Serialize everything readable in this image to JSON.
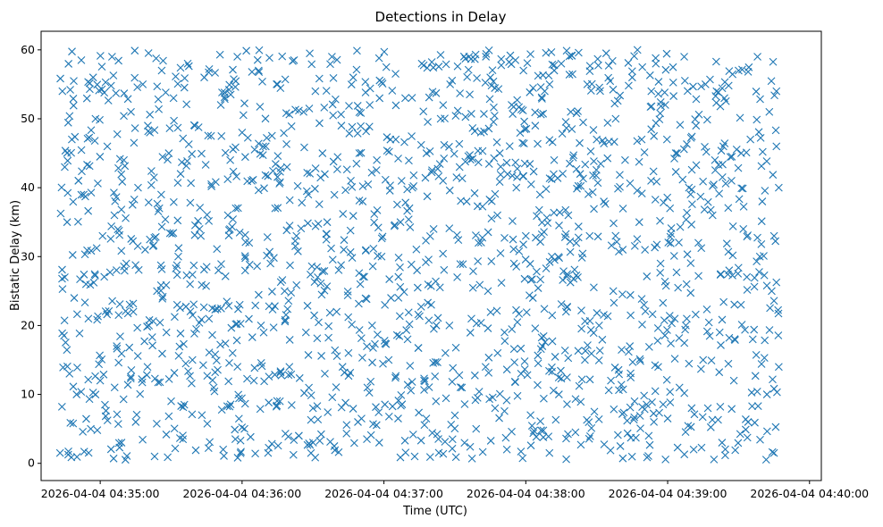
{
  "chart_data": {
    "type": "scatter",
    "title": "Detections in Delay",
    "xlabel": "Time (UTC)",
    "ylabel": "Bistatic Delay (km)",
    "x_tick_labels": [
      "2026-04-04 04:35:00",
      "2026-04-04 04:36:00",
      "2026-04-04 04:37:00",
      "2026-04-04 04:38:00",
      "2026-04-04 04:39:00",
      "2026-04-04 04:40:00"
    ],
    "y_tick_labels": [
      "0",
      "10",
      "20",
      "30",
      "40",
      "50",
      "60"
    ],
    "x_range": [
      "2026-04-04 04:34:35",
      "2026-04-04 04:40:05"
    ],
    "y_range": [
      -2.5,
      62.7
    ],
    "grid": false,
    "marker": "x",
    "color": "#1f77b4",
    "series": [
      {
        "x_start": "2026-04-04 04:34:43",
        "x_end": "2026-04-04 04:39:47",
        "y_min": 0.5,
        "y_max": 60,
        "points": [
          [
            "04:34:43",
            1.5
          ],
          [
            "04:34:44",
            54
          ],
          [
            "04:34:45",
            43
          ],
          [
            "04:34:46",
            35
          ],
          [
            "04:34:45",
            27
          ],
          [
            "04:34:47",
            13
          ],
          [
            "04:34:48",
            47
          ],
          [
            "04:34:49",
            24
          ],
          [
            "04:34:50",
            10
          ],
          [
            "04:34:52",
            58.5
          ],
          [
            "04:34:53",
            39
          ],
          [
            "04:34:54",
            26
          ],
          [
            "04:34:55",
            21
          ],
          [
            "04:34:56",
            5
          ],
          [
            "04:34:57",
            56
          ],
          [
            "04:34:58",
            50
          ],
          [
            "04:35:00",
            12
          ],
          [
            "04:35:01",
            33
          ],
          [
            "04:35:02",
            8.5
          ],
          [
            "04:35:03",
            46
          ],
          [
            "04:35:05",
            59
          ],
          [
            "04:35:06",
            36
          ],
          [
            "04:35:07",
            17
          ],
          [
            "04:35:09",
            3
          ],
          [
            "04:35:10",
            44
          ],
          [
            "04:35:11",
            29
          ],
          [
            "04:35:13",
            51
          ],
          [
            "04:35:14",
            22
          ],
          [
            "04:35:15",
            6
          ],
          [
            "04:35:16",
            40
          ],
          [
            "04:35:18",
            55
          ],
          [
            "04:35:19",
            31
          ],
          [
            "04:35:20",
            14
          ],
          [
            "04:35:21",
            48
          ],
          [
            "04:35:23",
            1
          ],
          [
            "04:35:24",
            25
          ],
          [
            "04:35:25",
            37
          ],
          [
            "04:35:26",
            57
          ],
          [
            "04:35:28",
            19
          ],
          [
            "04:35:29",
            45
          ],
          [
            "04:35:30",
            9
          ],
          [
            "04:35:31",
            53
          ],
          [
            "04:35:33",
            30
          ],
          [
            "04:35:34",
            42
          ],
          [
            "04:35:35",
            3.5
          ],
          [
            "04:35:37",
            58
          ],
          [
            "04:35:38",
            26
          ],
          [
            "04:35:39",
            15
          ],
          [
            "04:35:40",
            49
          ],
          [
            "04:35:42",
            34
          ],
          [
            "04:35:43",
            7
          ],
          [
            "04:35:44",
            56
          ],
          [
            "04:35:46",
            21
          ],
          [
            "04:35:47",
            40.5
          ],
          [
            "04:35:48",
            11
          ],
          [
            "04:35:50",
            28
          ],
          [
            "04:35:51",
            52
          ],
          [
            "04:35:52",
            2
          ],
          [
            "04:35:54",
            36
          ],
          [
            "04:35:55",
            44
          ],
          [
            "04:35:56",
            16
          ],
          [
            "04:35:58",
            59
          ],
          [
            "04:35:59",
            23
          ],
          [
            "04:36:00",
            48
          ],
          [
            "04:36:01",
            5
          ],
          [
            "04:36:03",
            32
          ],
          [
            "04:36:04",
            41
          ],
          [
            "04:36:05",
            12
          ],
          [
            "04:36:07",
            57
          ],
          [
            "04:36:08",
            20
          ],
          [
            "04:36:10",
            46
          ],
          [
            "04:36:11",
            1.5
          ],
          [
            "04:36:12",
            29
          ],
          [
            "04:36:14",
            37
          ],
          [
            "04:36:15",
            55
          ],
          [
            "04:36:16",
            9
          ],
          [
            "04:36:18",
            25
          ],
          [
            "04:36:19",
            43
          ],
          [
            "04:36:20",
            14
          ],
          [
            "04:36:22",
            58.5
          ],
          [
            "04:36:23",
            33
          ],
          [
            "04:36:24",
            4
          ],
          [
            "04:36:26",
            51
          ],
          [
            "04:36:27",
            19
          ],
          [
            "04:36:28",
            39
          ],
          [
            "04:36:30",
            8
          ],
          [
            "04:36:31",
            54
          ],
          [
            "04:36:32",
            27
          ],
          [
            "04:36:34",
            45
          ],
          [
            "04:36:35",
            13
          ],
          [
            "04:36:36",
            35
          ],
          [
            "04:36:38",
            59
          ],
          [
            "04:36:39",
            2.5
          ],
          [
            "04:36:40",
            22
          ],
          [
            "04:36:42",
            49
          ],
          [
            "04:36:43",
            31
          ],
          [
            "04:36:45",
            16
          ],
          [
            "04:36:46",
            41
          ],
          [
            "04:36:47",
            56
          ],
          [
            "04:36:49",
            6
          ],
          [
            "04:36:50",
            26
          ],
          [
            "04:36:51",
            38
          ],
          [
            "04:36:53",
            11
          ],
          [
            "04:36:54",
            52
          ],
          [
            "04:36:55",
            20
          ],
          [
            "04:36:57",
            44
          ],
          [
            "04:36:58",
            3
          ],
          [
            "04:36:59",
            30
          ],
          [
            "04:37:01",
            57.5
          ],
          [
            "04:37:02",
            15
          ],
          [
            "04:37:03",
            24
          ],
          [
            "04:37:05",
            47
          ],
          [
            "04:37:06",
            6.5
          ],
          [
            "04:37:07",
            35
          ],
          [
            "04:37:09",
            53
          ],
          [
            "04:37:10",
            18
          ],
          [
            "04:37:12",
            40
          ],
          [
            "04:37:13",
            1
          ],
          [
            "04:37:14",
            28
          ],
          [
            "04:37:16",
            58
          ],
          [
            "04:37:17",
            12
          ],
          [
            "04:37:18",
            45
          ],
          [
            "04:37:20",
            23
          ],
          [
            "04:37:21",
            34
          ],
          [
            "04:37:22",
            9
          ],
          [
            "04:37:24",
            50
          ],
          [
            "04:37:25",
            41
          ],
          [
            "04:37:26",
            16
          ],
          [
            "04:37:28",
            55
          ],
          [
            "04:37:29",
            3.5
          ],
          [
            "04:37:31",
            27
          ],
          [
            "04:37:32",
            43
          ],
          [
            "04:37:33",
            11
          ],
          [
            "04:37:35",
            38
          ],
          [
            "04:37:36",
            59
          ],
          [
            "04:37:37",
            21
          ],
          [
            "04:37:39",
            5
          ],
          [
            "04:37:40",
            32
          ],
          [
            "04:37:41",
            48
          ],
          [
            "04:37:43",
            14
          ],
          [
            "04:37:44",
            25
          ],
          [
            "04:37:45",
            56
          ],
          [
            "04:37:47",
            8
          ],
          [
            "04:37:48",
            36
          ],
          [
            "04:37:49",
            45
          ],
          [
            "04:37:51",
            19
          ],
          [
            "04:37:52",
            2
          ],
          [
            "04:37:54",
            52
          ],
          [
            "04:37:55",
            29
          ],
          [
            "04:37:56",
            40
          ],
          [
            "04:37:58",
            13
          ],
          [
            "04:37:59",
            57
          ],
          [
            "04:38:00",
            33
          ],
          [
            "04:38:02",
            7
          ],
          [
            "04:38:03",
            24
          ],
          [
            "04:38:04",
            49
          ],
          [
            "04:38:06",
            39
          ],
          [
            "04:38:07",
            17
          ],
          [
            "04:38:08",
            54
          ],
          [
            "04:38:10",
            1.5
          ],
          [
            "04:38:11",
            30
          ],
          [
            "04:38:12",
            44
          ],
          [
            "04:38:14",
            10
          ],
          [
            "04:38:15",
            58
          ],
          [
            "04:38:17",
            22
          ],
          [
            "04:38:18",
            36
          ],
          [
            "04:38:19",
            51
          ],
          [
            "04:38:21",
            4.5
          ],
          [
            "04:38:22",
            27
          ],
          [
            "04:38:23",
            42
          ],
          [
            "04:38:25",
            15
          ],
          [
            "04:38:26",
            55
          ],
          [
            "04:38:27",
            33
          ],
          [
            "04:38:29",
            7.5
          ],
          [
            "04:38:30",
            47
          ],
          [
            "04:38:31",
            20
          ],
          [
            "04:38:33",
            38
          ],
          [
            "04:38:34",
            59.5
          ],
          [
            "04:38:36",
            12
          ],
          [
            "04:38:37",
            25
          ],
          [
            "04:38:38",
            50
          ],
          [
            "04:38:40",
            2.5
          ],
          [
            "04:38:41",
            31
          ],
          [
            "04:38:42",
            44
          ],
          [
            "04:38:44",
            17
          ],
          [
            "04:38:45",
            56
          ],
          [
            "04:38:46",
            9
          ],
          [
            "04:38:48",
            35
          ],
          [
            "04:38:49",
            47
          ],
          [
            "04:38:50",
            23
          ],
          [
            "04:38:52",
            4
          ],
          [
            "04:38:53",
            41
          ],
          [
            "04:38:55",
            58
          ],
          [
            "04:38:56",
            14
          ],
          [
            "04:38:57",
            29
          ],
          [
            "04:38:59",
            52
          ],
          [
            "04:39:00",
            6.5
          ],
          [
            "04:39:01",
            37
          ],
          [
            "04:39:03",
            21
          ],
          [
            "04:39:04",
            45
          ],
          [
            "04:39:05",
            11
          ],
          [
            "04:39:07",
            59
          ],
          [
            "04:39:08",
            26
          ],
          [
            "04:39:09",
            40
          ],
          [
            "04:39:11",
            2
          ],
          [
            "04:39:12",
            49
          ],
          [
            "04:39:13",
            32
          ],
          [
            "04:39:15",
            15
          ],
          [
            "04:39:16",
            55
          ],
          [
            "04:39:17",
            8
          ],
          [
            "04:39:19",
            36
          ],
          [
            "04:39:20",
            44
          ],
          [
            "04:39:22",
            19
          ],
          [
            "04:39:23",
            3
          ],
          [
            "04:39:24",
            53
          ],
          [
            "04:39:26",
            28
          ],
          [
            "04:39:27",
            41
          ],
          [
            "04:39:28",
            12
          ],
          [
            "04:39:30",
            57
          ],
          [
            "04:39:31",
            23
          ],
          [
            "04:39:32",
            34
          ],
          [
            "04:39:34",
            6
          ],
          [
            "04:39:35",
            47
          ],
          [
            "04:39:36",
            18
          ],
          [
            "04:39:38",
            59
          ],
          [
            "04:39:39",
            30
          ],
          [
            "04:39:40",
            38
          ],
          [
            "04:39:42",
            10
          ],
          [
            "04:39:43",
            51
          ],
          [
            "04:39:44",
            25
          ],
          [
            "04:39:45",
            1.5
          ],
          [
            "04:39:46",
            46
          ],
          [
            "04:39:47",
            14
          ],
          [
            "04:39:47",
            40
          ],
          [
            "04:39:46",
            54
          ],
          [
            "04:39:45",
            33
          ]
        ]
      }
    ]
  }
}
